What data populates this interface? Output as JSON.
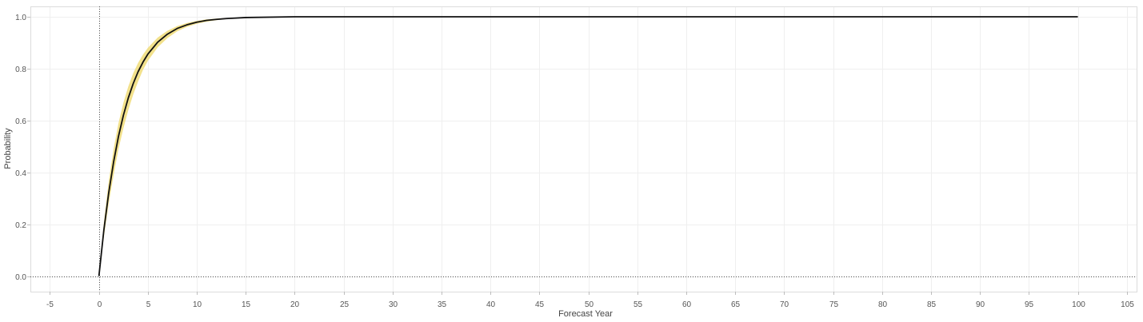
{
  "chart_data": {
    "type": "area",
    "xlabel": "Forecast Year",
    "ylabel": "Probability",
    "xlim": [
      -7,
      106
    ],
    "ylim": [
      -0.06,
      1.04
    ],
    "x_ticks": [
      -5,
      0,
      5,
      10,
      15,
      20,
      25,
      30,
      35,
      40,
      45,
      50,
      55,
      60,
      65,
      70,
      75,
      80,
      85,
      90,
      95,
      100,
      105
    ],
    "y_ticks": [
      0.0,
      0.2,
      0.4,
      0.6,
      0.8,
      1.0
    ],
    "y_tick_labels": [
      "0.0",
      "0.2",
      "0.4",
      "0.6",
      "0.8",
      "1.0"
    ],
    "grid": true,
    "reference_lines": {
      "x": 0,
      "y": 0
    },
    "series": [
      {
        "role": "line",
        "color": "#111111",
        "x": [
          0,
          0.5,
          1,
          1.5,
          2,
          2.5,
          3,
          3.5,
          4,
          4.5,
          5,
          6,
          7,
          8,
          9,
          10,
          11,
          12,
          13,
          14,
          15,
          20,
          30,
          40,
          50,
          60,
          70,
          80,
          90,
          100
        ],
        "y": [
          0.0,
          0.176,
          0.321,
          0.44,
          0.539,
          0.62,
          0.687,
          0.742,
          0.788,
          0.825,
          0.856,
          0.902,
          0.933,
          0.955,
          0.969,
          0.979,
          0.986,
          0.99,
          0.993,
          0.995,
          0.997,
          1.0,
          1.0,
          1.0,
          1.0,
          1.0,
          1.0,
          1.0,
          1.0,
          1.0
        ]
      },
      {
        "role": "band",
        "color": "#f0dc78",
        "x": [
          0,
          0.5,
          1,
          1.5,
          2,
          2.5,
          3,
          3.5,
          4,
          4.5,
          5,
          6,
          7,
          8,
          9,
          10,
          11,
          12,
          13,
          14,
          15,
          20,
          30,
          40,
          50,
          60,
          70,
          80,
          90,
          100
        ],
        "lower": [
          0.0,
          0.15,
          0.28,
          0.39,
          0.49,
          0.57,
          0.64,
          0.7,
          0.75,
          0.795,
          0.83,
          0.882,
          0.918,
          0.944,
          0.961,
          0.973,
          0.981,
          0.987,
          0.991,
          0.994,
          0.996,
          0.999,
          1.0,
          1.0,
          1.0,
          1.0,
          1.0,
          1.0,
          1.0,
          1.0
        ],
        "upper": [
          0.0,
          0.205,
          0.365,
          0.49,
          0.59,
          0.668,
          0.731,
          0.782,
          0.822,
          0.854,
          0.88,
          0.92,
          0.946,
          0.964,
          0.976,
          0.984,
          0.99,
          0.993,
          0.995,
          0.997,
          0.998,
          1.0,
          1.0,
          1.0,
          1.0,
          1.0,
          1.0,
          1.0,
          1.0,
          1.0
        ]
      }
    ]
  }
}
